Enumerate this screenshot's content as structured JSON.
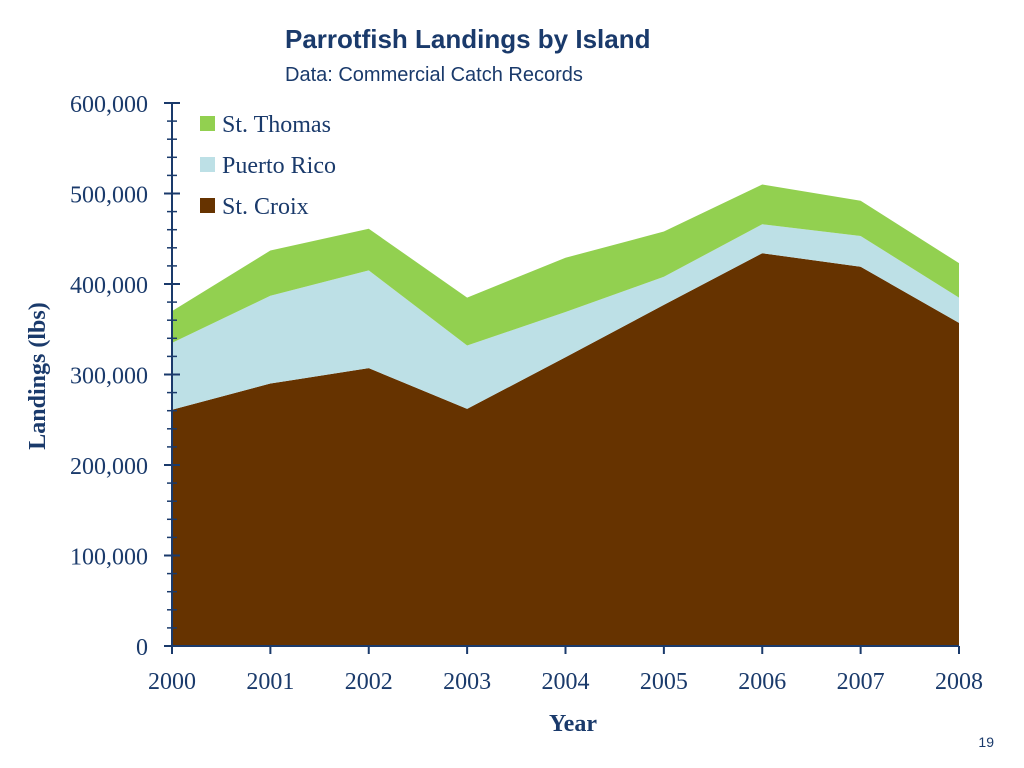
{
  "header": {
    "title": "Parrotfish Landings by Island",
    "subtitle": "Data: Commercial Catch Records"
  },
  "page_number": "19",
  "colors": {
    "axis": "#1a3a6b",
    "text": "#1a3a6b"
  },
  "chart_data": {
    "type": "area",
    "stacked": true,
    "x": [
      2000,
      2001,
      2002,
      2003,
      2004,
      2005,
      2006,
      2007,
      2008
    ],
    "xlabel": "Year",
    "ylabel": "Landings (lbs)",
    "ylim": [
      0,
      600000
    ],
    "yticks": [
      0,
      100000,
      200000,
      300000,
      400000,
      500000,
      600000
    ],
    "ytick_labels": [
      "0",
      "100,000",
      "200,000",
      "300,000",
      "400,000",
      "500,000",
      "600,000"
    ],
    "legend_position": "top-left",
    "grid": false,
    "series": [
      {
        "name": "St. Croix",
        "color": "#663300",
        "values": [
          261000,
          290000,
          307000,
          262000,
          319000,
          377000,
          434000,
          419000,
          357000
        ]
      },
      {
        "name": "Puerto Rico",
        "color": "#bde0e6",
        "values": [
          74000,
          97000,
          108000,
          70000,
          50000,
          31000,
          32000,
          34000,
          28000
        ]
      },
      {
        "name": "St. Thomas",
        "color": "#92d050",
        "values": [
          35000,
          50000,
          46000,
          53000,
          60000,
          50000,
          44000,
          39000,
          38000
        ]
      }
    ],
    "legend_order": [
      "St. Thomas",
      "Puerto Rico",
      "St. Croix"
    ]
  }
}
